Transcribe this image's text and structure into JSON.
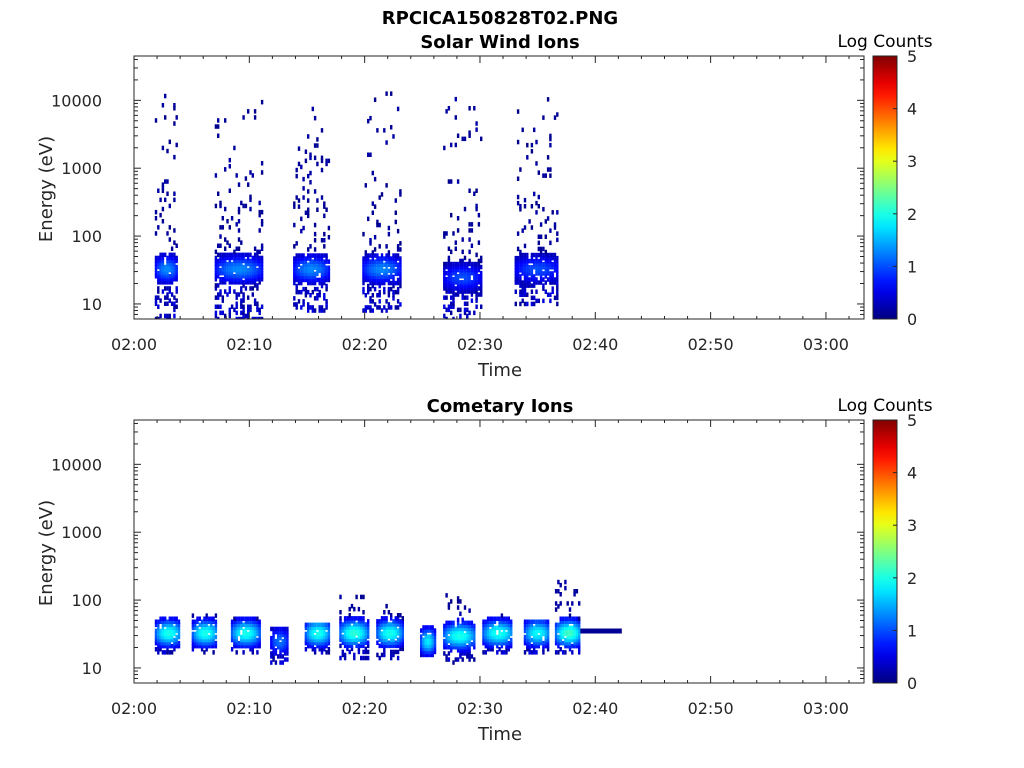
{
  "figure_title": "RPCICA150828T02.PNG",
  "chart_data": [
    {
      "type": "heatmap",
      "title": "Solar Wind Ions",
      "xlabel": "Time",
      "ylabel": "Energy (eV)",
      "x_ticks": [
        "02:00",
        "02:10",
        "02:20",
        "02:30",
        "02:40",
        "02:50",
        "03:00"
      ],
      "xlim_minutes": [
        0,
        63.3
      ],
      "y_ticks": [
        10,
        100,
        1000,
        10000
      ],
      "y_tick_labels": [
        "10",
        "100",
        "1000",
        "10000"
      ],
      "ylim": [
        6,
        45000
      ],
      "y_scale": "log",
      "colorbar": {
        "label": "Log Counts",
        "range": [
          0,
          5
        ],
        "ticks": [
          "0",
          "1",
          "2",
          "3",
          "4",
          "5"
        ],
        "colormap": "jet"
      },
      "bursts": [
        {
          "t_start": 1.8,
          "t_end": 3.7,
          "e_min": 6,
          "e_max": 13000,
          "peak_energy": 33,
          "peak_log_counts": 1.3
        },
        {
          "t_start": 7.0,
          "t_end": 11.0,
          "e_min": 6,
          "e_max": 12000,
          "peak_energy": 33,
          "peak_log_counts": 1.3
        },
        {
          "t_start": 13.8,
          "t_end": 16.8,
          "e_min": 8,
          "e_max": 9000,
          "peak_energy": 33,
          "peak_log_counts": 1.3
        },
        {
          "t_start": 19.8,
          "t_end": 23.0,
          "e_min": 8,
          "e_max": 14000,
          "peak_energy": 33,
          "peak_log_counts": 1.3
        },
        {
          "t_start": 26.8,
          "t_end": 30.0,
          "e_min": 6,
          "e_max": 11000,
          "peak_energy": 25,
          "peak_log_counts": 1.0
        },
        {
          "t_start": 33.0,
          "t_end": 36.8,
          "e_min": 10,
          "e_max": 11000,
          "peak_energy": 33,
          "peak_log_counts": 1.0
        }
      ]
    },
    {
      "type": "heatmap",
      "title": "Cometary Ions",
      "xlabel": "Time",
      "ylabel": "Energy (eV)",
      "x_ticks": [
        "02:00",
        "02:10",
        "02:20",
        "02:30",
        "02:40",
        "02:50",
        "03:00"
      ],
      "xlim_minutes": [
        0,
        63.3
      ],
      "y_ticks": [
        10,
        100,
        1000,
        10000
      ],
      "y_tick_labels": [
        "10",
        "100",
        "1000",
        "10000"
      ],
      "ylim": [
        6,
        45000
      ],
      "y_scale": "log",
      "colorbar": {
        "label": "Log Counts",
        "range": [
          0,
          5
        ],
        "ticks": [
          "0",
          "1",
          "2",
          "3",
          "4",
          "5"
        ],
        "colormap": "jet"
      },
      "bursts": [
        {
          "t_start": 1.8,
          "t_end": 4.0,
          "e_min": 17,
          "e_max": 55,
          "peak_energy": 33,
          "peak_log_counts": 2.0
        },
        {
          "t_start": 5.0,
          "t_end": 7.2,
          "e_min": 17,
          "e_max": 60,
          "peak_energy": 33,
          "peak_log_counts": 2.0
        },
        {
          "t_start": 8.4,
          "t_end": 10.8,
          "e_min": 17,
          "e_max": 55,
          "peak_energy": 33,
          "peak_log_counts": 2.0
        },
        {
          "t_start": 11.8,
          "t_end": 13.3,
          "e_min": 12,
          "e_max": 40,
          "peak_energy": 25,
          "peak_log_counts": 1.2
        },
        {
          "t_start": 14.8,
          "t_end": 16.9,
          "e_min": 17,
          "e_max": 45,
          "peak_energy": 33,
          "peak_log_counts": 2.0
        },
        {
          "t_start": 17.8,
          "t_end": 20.2,
          "e_min": 14,
          "e_max": 120,
          "peak_energy": 33,
          "peak_log_counts": 2.1
        },
        {
          "t_start": 21.0,
          "t_end": 23.2,
          "e_min": 14,
          "e_max": 90,
          "peak_energy": 33,
          "peak_log_counts": 2.0
        },
        {
          "t_start": 24.8,
          "t_end": 26.0,
          "e_min": 14,
          "e_max": 40,
          "peak_energy": 25,
          "peak_log_counts": 1.8
        },
        {
          "t_start": 26.8,
          "t_end": 29.5,
          "e_min": 12,
          "e_max": 120,
          "peak_energy": 30,
          "peak_log_counts": 2.0
        },
        {
          "t_start": 30.2,
          "t_end": 32.8,
          "e_min": 17,
          "e_max": 70,
          "peak_energy": 33,
          "peak_log_counts": 2.0
        },
        {
          "t_start": 33.8,
          "t_end": 36.0,
          "e_min": 17,
          "e_max": 50,
          "peak_energy": 33,
          "peak_log_counts": 1.9
        },
        {
          "t_start": 36.5,
          "t_end": 38.7,
          "e_min": 17,
          "e_max": 190,
          "peak_energy": 33,
          "peak_log_counts": 2.2
        }
      ],
      "trail": {
        "t_start": 38.7,
        "t_end": 42.3,
        "energy": 35,
        "log_counts": 0.1
      }
    }
  ]
}
